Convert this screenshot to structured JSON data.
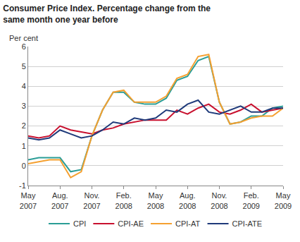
{
  "chart_data": {
    "type": "line",
    "title": "Consumer Price Index. Percentage change from the same month one year before",
    "ylabel": "Per cent",
    "categories": [
      "May 2007",
      null,
      null,
      "Aug. 2007",
      null,
      null,
      "Nov. 2007",
      null,
      null,
      "Feb. 2008",
      null,
      null,
      "May 2008",
      null,
      null,
      "Aug. 2008",
      null,
      null,
      "Nov. 2008",
      null,
      null,
      "Feb. 2009",
      null,
      null,
      "May 2009"
    ],
    "series": [
      {
        "name": "CPI",
        "color": "#2a9d96",
        "values": [
          0.3,
          0.4,
          0.4,
          0.4,
          -0.3,
          -0.2,
          1.5,
          2.8,
          3.7,
          3.7,
          3.2,
          3.1,
          3.1,
          3.4,
          4.3,
          4.5,
          5.3,
          5.5,
          3.2,
          2.1,
          2.2,
          2.5,
          2.5,
          2.9,
          3.0
        ]
      },
      {
        "name": "CPI-AE",
        "color": "#c8102e",
        "values": [
          1.5,
          1.4,
          1.5,
          2.0,
          1.8,
          1.7,
          1.6,
          1.8,
          1.9,
          2.1,
          2.2,
          2.3,
          2.3,
          2.3,
          2.8,
          2.6,
          2.9,
          3.1,
          2.7,
          2.6,
          2.8,
          3.1,
          2.7,
          2.8,
          2.9
        ]
      },
      {
        "name": "CPI-AT",
        "color": "#f5a030",
        "values": [
          0.1,
          0.2,
          0.3,
          0.3,
          -0.6,
          -0.3,
          1.5,
          2.8,
          3.7,
          3.8,
          3.2,
          3.2,
          3.2,
          3.5,
          4.4,
          4.6,
          5.5,
          5.6,
          3.2,
          2.1,
          2.2,
          2.4,
          2.5,
          2.5,
          2.9
        ]
      },
      {
        "name": "CPI-ATE",
        "color": "#1f3a7a",
        "values": [
          1.4,
          1.3,
          1.4,
          1.8,
          1.6,
          1.4,
          1.5,
          1.8,
          2.2,
          2.1,
          2.4,
          2.3,
          2.4,
          2.8,
          2.7,
          3.1,
          3.3,
          2.7,
          2.6,
          2.8,
          3.0,
          2.7,
          2.7,
          2.9,
          2.9
        ]
      }
    ],
    "ylim": [
      -1,
      6
    ],
    "yticks": [
      -1,
      0,
      1,
      2,
      3,
      4,
      5,
      6
    ],
    "grid": true,
    "legend": "bottom"
  }
}
